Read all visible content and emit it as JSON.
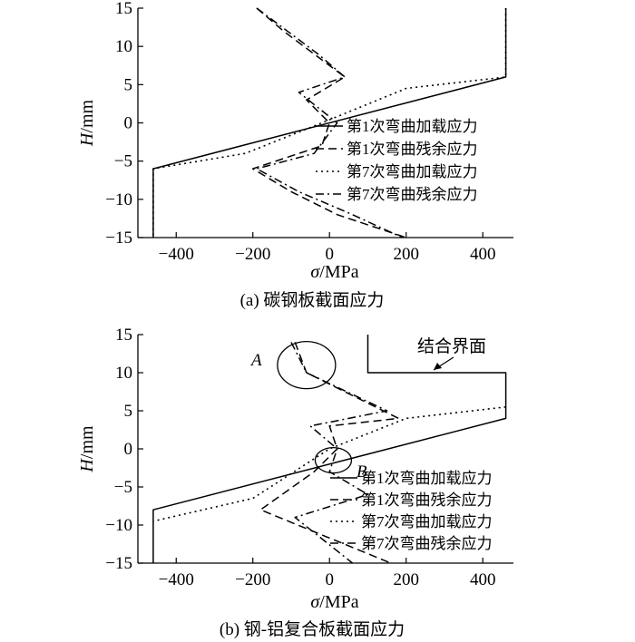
{
  "chart_data": [
    {
      "type": "line",
      "caption": "(a) 碳钢板截面应力",
      "xlabel_symbol": "σ",
      "xlabel_unit": "/MPa",
      "ylabel_symbol": "H",
      "ylabel_unit": "/mm",
      "xlim": [
        -500,
        480
      ],
      "ylim": [
        -15,
        15
      ],
      "xticks": [
        -400,
        -200,
        0,
        200,
        400
      ],
      "yticks": [
        15,
        10,
        5,
        0,
        -5,
        -10,
        -15
      ],
      "grid": false,
      "legend_position": "center-right",
      "series": [
        {
          "name": "第1次弯曲加载应力",
          "style": "solid",
          "points": [
            [
              460,
              15
            ],
            [
              460,
              6
            ],
            [
              -460,
              -6
            ],
            [
              -460,
              -15
            ]
          ]
        },
        {
          "name": "第1次弯曲残余应力",
          "style": "dashed",
          "points": [
            [
              -190,
              15
            ],
            [
              -120,
              12
            ],
            [
              -40,
              9
            ],
            [
              40,
              6
            ],
            [
              -60,
              3
            ],
            [
              0,
              0
            ],
            [
              -20,
              -3
            ],
            [
              -200,
              -6
            ],
            [
              -100,
              -9
            ],
            [
              20,
              -12
            ],
            [
              200,
              -15
            ]
          ]
        },
        {
          "name": "第7次弯曲加载应力",
          "style": "dotted",
          "points": [
            [
              460,
              15
            ],
            [
              460,
              6
            ],
            [
              200,
              4.5
            ],
            [
              -20,
              0
            ],
            [
              -220,
              -4
            ],
            [
              -460,
              -6
            ],
            [
              -460,
              -15
            ]
          ]
        },
        {
          "name": "第7次弯曲残余应力",
          "style": "dashdot",
          "points": [
            [
              -190,
              15
            ],
            [
              -110,
              12
            ],
            [
              -30,
              9
            ],
            [
              40,
              6
            ],
            [
              -80,
              4
            ],
            [
              20,
              0
            ],
            [
              -40,
              -4
            ],
            [
              -190,
              -6
            ],
            [
              -80,
              -9
            ],
            [
              60,
              -12
            ],
            [
              190,
              -15
            ]
          ]
        }
      ]
    },
    {
      "type": "line",
      "caption": "(b) 钢-铝复合板截面应力",
      "xlabel_symbol": "σ",
      "xlabel_unit": "/MPa",
      "ylabel_symbol": "H",
      "ylabel_unit": "/mm",
      "xlim": [
        -500,
        480
      ],
      "ylim": [
        -15,
        15
      ],
      "xticks": [
        -400,
        -200,
        0,
        200,
        400
      ],
      "yticks": [
        15,
        10,
        5,
        0,
        -5,
        -10,
        -15
      ],
      "grid": false,
      "legend_position": "bottom-right",
      "annotations": {
        "interface_label": "结合界面",
        "circle_a": "A",
        "circle_b": "B"
      },
      "series": [
        {
          "name": "第1次弯曲加载应力",
          "style": "solid",
          "points": [
            [
              100,
              15
            ],
            [
              100,
              10
            ],
            [
              460,
              10
            ],
            [
              460,
              4
            ],
            [
              -460,
              -8
            ],
            [
              -460,
              -15
            ]
          ]
        },
        {
          "name": "第1次弯曲残余应力",
          "style": "dashed",
          "points": [
            [
              -90,
              14
            ],
            [
              -60,
              10
            ],
            [
              180,
              4
            ],
            [
              0,
              3
            ],
            [
              20,
              0
            ],
            [
              -40,
              -3
            ],
            [
              -180,
              -8
            ],
            [
              160,
              -15
            ]
          ]
        },
        {
          "name": "第7次弯曲加载应力",
          "style": "dotted",
          "points": [
            [
              460,
              5.5
            ],
            [
              200,
              4
            ],
            [
              0,
              0
            ],
            [
              -200,
              -6.5
            ],
            [
              -460,
              -9.5
            ]
          ]
        },
        {
          "name": "第7次弯曲残余应力",
          "style": "dashdot",
          "points": [
            [
              -100,
              14
            ],
            [
              -60,
              10
            ],
            [
              150,
              5
            ],
            [
              -50,
              3
            ],
            [
              20,
              0
            ],
            [
              0,
              -3
            ],
            [
              100,
              -6
            ],
            [
              -90,
              -9
            ],
            [
              60,
              -15
            ]
          ]
        }
      ]
    }
  ]
}
